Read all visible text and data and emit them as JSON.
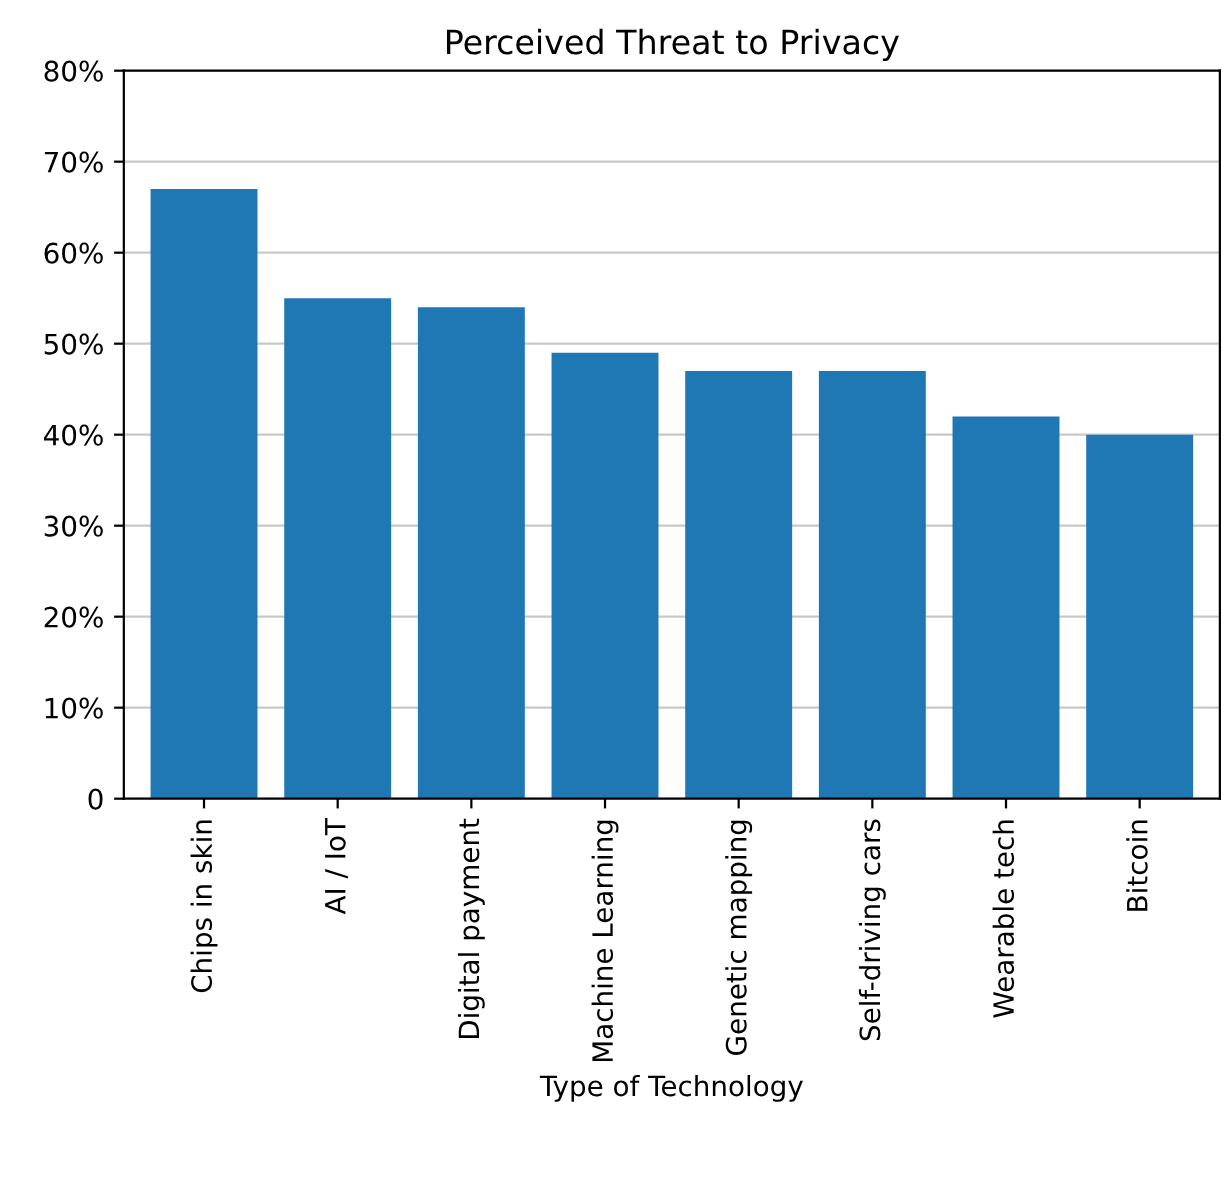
{
  "chart_data": {
    "type": "bar",
    "title": "Perceived Threat to Privacy",
    "xlabel": "Type of Technology",
    "categories": [
      "Chips in skin",
      "AI / IoT",
      "Digital payment",
      "Machine Learning",
      "Genetic mapping",
      "Self-driving cars",
      "Wearable tech",
      "Bitcoin"
    ],
    "values": [
      67,
      55,
      54,
      49,
      47,
      47,
      42,
      40
    ],
    "color": "#1f77b4",
    "ylim": [
      0,
      80
    ],
    "yticks": [
      0,
      {
        "value": 10,
        "label": "10%"
      },
      {
        "value": 20,
        "label": "20%"
      },
      {
        "value": 30,
        "label": "30%"
      },
      {
        "value": 40,
        "label": "40%"
      },
      {
        "value": 50,
        "label": "50%"
      },
      {
        "value": 60,
        "label": "60%"
      },
      {
        "value": 70,
        "label": "70%"
      },
      {
        "value": 80,
        "label": "80%"
      }
    ],
    "grid": "y"
  }
}
